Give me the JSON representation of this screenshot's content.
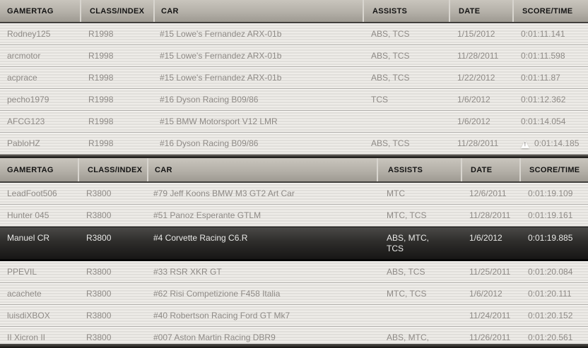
{
  "colors": {
    "header_top": "#c9c5bd",
    "header_bottom": "#9e9a92",
    "row_stripe_light": "#eeece8",
    "row_stripe_dark": "#e1dfdb",
    "row_text": "#8e8a86",
    "header_text": "#141414",
    "highlight_top": "#4a4947",
    "highlight_bottom": "#171615",
    "highlight_text": "#e9e9e7",
    "warning_icon": "#fdfdfc"
  },
  "icons": {
    "warning": "warning-triangle-icon"
  },
  "tables": [
    {
      "class_label": "R1998",
      "columns": [
        "GAMERTAG",
        "CLASS/INDEX",
        "CAR",
        "ASSISTS",
        "DATE",
        "SCORE/TIME"
      ],
      "rows": [
        {
          "gamertag": "Rodney125",
          "class_index": "R1998",
          "car": "#15 Lowe's Fernandez ARX-01b",
          "assists": "ABS, TCS",
          "date": "1/15/2012",
          "score_time": "0:01:11.141",
          "warning": false,
          "highlighted": false
        },
        {
          "gamertag": "arcmotor",
          "class_index": "R1998",
          "car": "#15 Lowe's Fernandez ARX-01b",
          "assists": "ABS, TCS",
          "date": "11/28/2011",
          "score_time": "0:01:11.598",
          "warning": false,
          "highlighted": false
        },
        {
          "gamertag": "acprace",
          "class_index": "R1998",
          "car": "#15 Lowe's Fernandez ARX-01b",
          "assists": "ABS, TCS",
          "date": "1/22/2012",
          "score_time": "0:01:11.87",
          "warning": false,
          "highlighted": false
        },
        {
          "gamertag": "pecho1979",
          "class_index": "R1998",
          "car": "#16 Dyson Racing B09/86",
          "assists": "TCS",
          "date": "1/6/2012",
          "score_time": "0:01:12.362",
          "warning": false,
          "highlighted": false
        },
        {
          "gamertag": "AFCG123",
          "class_index": "R1998",
          "car": "#15 BMW Motorsport V12 LMR",
          "assists": "",
          "date": "1/6/2012",
          "score_time": "0:01:14.054",
          "warning": false,
          "highlighted": false
        },
        {
          "gamertag": "PabloHZ",
          "class_index": "R1998",
          "car": "#16 Dyson Racing B09/86",
          "assists": "ABS, TCS",
          "date": "11/28/2011",
          "score_time": "0:01:14.185",
          "warning": true,
          "highlighted": false
        }
      ]
    },
    {
      "class_label": "R3800",
      "columns": [
        "GAMERTAG",
        "CLASS/INDEX",
        "CAR",
        "ASSISTS",
        "DATE",
        "SCORE/TIME"
      ],
      "rows": [
        {
          "gamertag": "LeadFoot506",
          "class_index": "R3800",
          "car": "#79 Jeff Koons BMW M3 GT2 Art Car",
          "assists": "MTC",
          "date": "12/6/2011",
          "score_time": "0:01:19.109",
          "warning": false,
          "highlighted": false
        },
        {
          "gamertag": "Hunter 045",
          "class_index": "R3800",
          "car": "#51 Panoz Esperante GTLM",
          "assists": "MTC, TCS",
          "date": "11/28/2011",
          "score_time": "0:01:19.161",
          "warning": false,
          "highlighted": false
        },
        {
          "gamertag": "Manuel CR",
          "class_index": "R3800",
          "car": "#4 Corvette Racing C6.R",
          "assists": "ABS, MTC, TCS",
          "date": "1/6/2012",
          "score_time": "0:01:19.885",
          "warning": false,
          "highlighted": true
        },
        {
          "gamertag": "PPEVIL",
          "class_index": "R3800",
          "car": "#33 RSR XKR GT",
          "assists": "ABS, TCS",
          "date": "11/25/2011",
          "score_time": "0:01:20.084",
          "warning": false,
          "highlighted": false
        },
        {
          "gamertag": "acachete",
          "class_index": "R3800",
          "car": "#62 Risi Competizione F458 Italia",
          "assists": "MTC, TCS",
          "date": "1/6/2012",
          "score_time": "0:01:20.111",
          "warning": false,
          "highlighted": false
        },
        {
          "gamertag": "luisdiXBOX",
          "class_index": "R3800",
          "car": "#40 Robertson Racing Ford GT Mk7",
          "assists": "",
          "date": "11/24/2011",
          "score_time": "0:01:20.152",
          "warning": false,
          "highlighted": false
        },
        {
          "gamertag": "II Xicron II",
          "class_index": "R3800",
          "car": "#007 Aston Martin Racing DBR9",
          "assists": "ABS, MTC, TCS",
          "date": "11/26/2011",
          "score_time": "0:01:20.561",
          "warning": false,
          "highlighted": false
        }
      ]
    }
  ]
}
